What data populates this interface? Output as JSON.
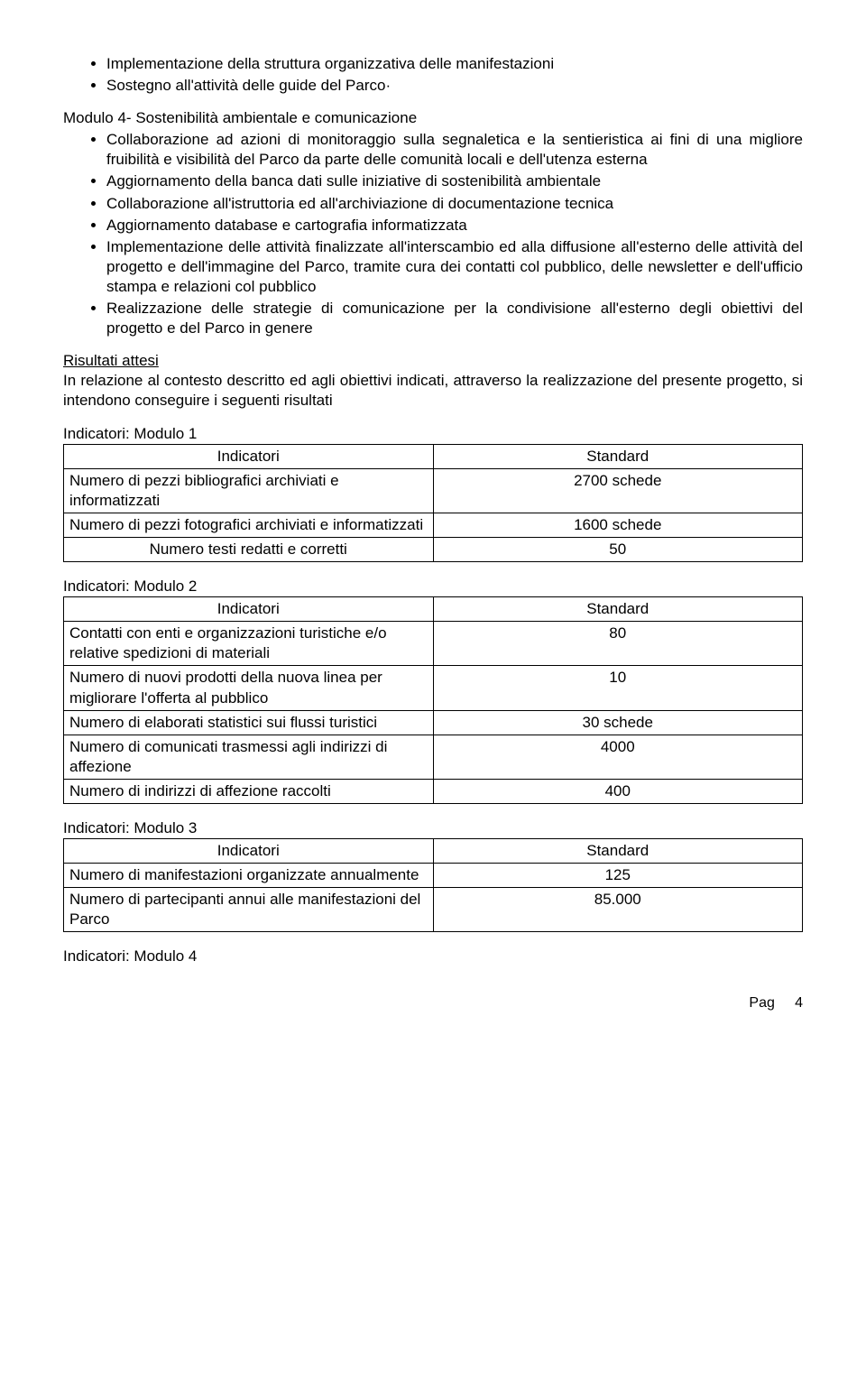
{
  "list1": [
    "Implementazione della struttura organizzativa delle manifestazioni",
    "Sostegno all'attività delle guide del Parco·"
  ],
  "module4_title": "Modulo 4- Sostenibilità ambientale e comunicazione",
  "list2": [
    "Collaborazione ad azioni di monitoraggio sulla segnaletica e la sentieristica ai fini di una migliore fruibilità e visibilità del Parco da parte delle comunità locali e dell'utenza esterna",
    "Aggiornamento della banca dati sulle iniziative di sostenibilità ambientale",
    "Collaborazione all'istruttoria ed all'archiviazione di documentazione tecnica",
    "Aggiornamento database e cartografia informatizzata",
    "Implementazione delle attività finalizzate all'interscambio ed alla diffusione all'esterno delle attività del progetto e dell'immagine del Parco, tramite cura dei contatti col pubblico, delle newsletter e dell'ufficio stampa e relazioni col pubblico",
    "Realizzazione delle strategie di comunicazione per la condivisione all'esterno degli obiettivi del progetto e del Parco in genere"
  ],
  "results_heading": "Risultati attesi",
  "results_intro": "In relazione al contesto descritto ed agli obiettivi indicati, attraverso la realizzazione del presente progetto, si intendono conseguire i seguenti risultati",
  "col_indicatori": "Indicatori",
  "col_standard": "Standard",
  "tables": [
    {
      "heading": "Indicatori: Modulo 1",
      "rows": [
        {
          "label": "Numero di pezzi bibliografici archiviati e informatizzati",
          "value": "2700 schede"
        },
        {
          "label": "Numero di pezzi fotografici archiviati e informatizzati",
          "value": "1600 schede"
        },
        {
          "label": "Numero testi redatti e corretti",
          "value": "50",
          "center_label": true
        }
      ]
    },
    {
      "heading": "Indicatori: Modulo 2",
      "rows": [
        {
          "label": "Contatti con enti e organizzazioni turistiche e/o relative spedizioni di materiali",
          "value": "80"
        },
        {
          "label": "Numero di nuovi prodotti della nuova linea per migliorare l'offerta al pubblico",
          "value": "10"
        },
        {
          "label": "Numero di elaborati statistici sui flussi turistici",
          "value": "30 schede"
        },
        {
          "label": "Numero di comunicati trasmessi agli indirizzi di affezione",
          "value": "4000"
        },
        {
          "label": "Numero di indirizzi di affezione raccolti",
          "value": "400"
        }
      ]
    },
    {
      "heading": "Indicatori: Modulo 3",
      "rows": [
        {
          "label": "Numero di manifestazioni organizzate annualmente",
          "value": "125"
        },
        {
          "label": "Numero di partecipanti annui alle manifestazioni del Parco",
          "value": "85.000"
        }
      ]
    }
  ],
  "module4_footer": "Indicatori: Modulo 4",
  "page_label": "Pag",
  "page_number": "4"
}
